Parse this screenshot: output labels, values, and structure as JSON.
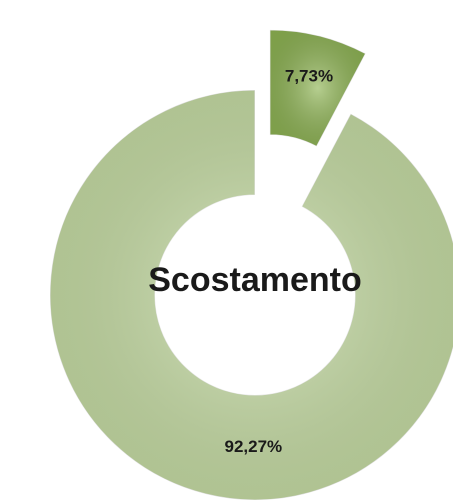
{
  "chart_data": {
    "type": "donut",
    "title": "Scostamento",
    "values": [
      7.73,
      92.27
    ],
    "value_labels": [
      "7,73%",
      "92,27%"
    ],
    "colors": [
      "#8fb554",
      "#c9e0a6"
    ],
    "exploded": [
      true,
      false
    ]
  }
}
